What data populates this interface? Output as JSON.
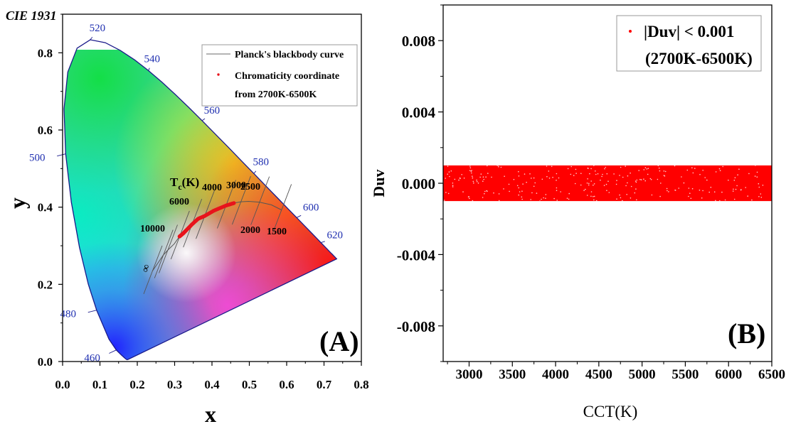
{
  "chart_data": [
    {
      "panel": "(A)",
      "type": "scatter",
      "title": "CIE 1931",
      "xlabel": "x",
      "ylabel": "y",
      "xlim": [
        0.0,
        0.8
      ],
      "ylim": [
        0.0,
        0.9
      ],
      "xticks": [
        "0.0",
        "0.1",
        "0.2",
        "0.3",
        "0.4",
        "0.5",
        "0.6",
        "0.7",
        "0.8"
      ],
      "yticks": [
        "0.0",
        "0.2",
        "0.4",
        "0.6",
        "0.8"
      ],
      "spectral_locus_labels": [
        {
          "nm": "460",
          "x": 0.144,
          "y": 0.03
        },
        {
          "nm": "480",
          "x": 0.091,
          "y": 0.133
        },
        {
          "nm": "500",
          "x": 0.008,
          "y": 0.538
        },
        {
          "nm": "520",
          "x": 0.074,
          "y": 0.834
        },
        {
          "nm": "540",
          "x": 0.23,
          "y": 0.754
        },
        {
          "nm": "560",
          "x": 0.373,
          "y": 0.624
        },
        {
          "nm": "580",
          "x": 0.512,
          "y": 0.487
        },
        {
          "nm": "600",
          "x": 0.627,
          "y": 0.373
        },
        {
          "nm": "620",
          "x": 0.691,
          "y": 0.308
        }
      ],
      "cct_label_title": "Tc(K)",
      "isotherm_labels": [
        "1500",
        "2000",
        "2500",
        "3000",
        "4000",
        "6000",
        "10000",
        "∞"
      ],
      "planckian_locus": {
        "x": [
          0.24,
          0.253,
          0.269,
          0.281,
          0.299,
          0.313,
          0.323,
          0.331,
          0.346,
          0.363,
          0.38,
          0.405,
          0.437,
          0.46,
          0.477,
          0.498,
          0.527,
          0.559,
          0.586
        ],
        "y": [
          0.234,
          0.252,
          0.275,
          0.288,
          0.305,
          0.324,
          0.332,
          0.34,
          0.355,
          0.37,
          0.377,
          0.391,
          0.404,
          0.411,
          0.414,
          0.415,
          0.413,
          0.406,
          0.393
        ]
      },
      "series": [
        {
          "name": "Planck's blackbody curve",
          "type": "line",
          "color": "#888888"
        },
        {
          "name": "Chromaticity coordinate from 2700K-6500K",
          "type": "scatter",
          "color": "#e8141c",
          "x": [
            0.313,
            0.323,
            0.331,
            0.346,
            0.363,
            0.38,
            0.405,
            0.437,
            0.46
          ],
          "y": [
            0.324,
            0.332,
            0.34,
            0.355,
            0.37,
            0.377,
            0.391,
            0.404,
            0.411
          ]
        }
      ],
      "legend": [
        {
          "label": "Planck's blackbody curve"
        },
        {
          "label_line1": "Chromaticity coordinate",
          "label_line2": "from 2700K-6500K"
        }
      ],
      "legend_placement": "top-right",
      "panel_label": "(A)"
    },
    {
      "panel": "(B)",
      "type": "scatter",
      "xlabel": "CCT(K)",
      "ylabel": "Duv",
      "xlim": [
        2700,
        6500
      ],
      "ylim": [
        -0.01,
        0.01
      ],
      "xticks": [
        "3000",
        "3500",
        "4000",
        "4500",
        "5000",
        "5500",
        "6000",
        "6500"
      ],
      "yticks": [
        "0.008",
        "0.004",
        "0.000",
        "-0.004",
        "-0.008"
      ],
      "series": [
        {
          "name": "|Duv| < 0.001",
          "color": "#ff0000",
          "cct_range": [
            2700,
            6500
          ],
          "duv_range": [
            -0.001,
            0.001
          ]
        }
      ],
      "legend": {
        "line1": "|Duv| < 0.001",
        "line2": "(2700K-6500K)"
      },
      "legend_placement": "top-right",
      "panel_label": "(B)"
    }
  ]
}
